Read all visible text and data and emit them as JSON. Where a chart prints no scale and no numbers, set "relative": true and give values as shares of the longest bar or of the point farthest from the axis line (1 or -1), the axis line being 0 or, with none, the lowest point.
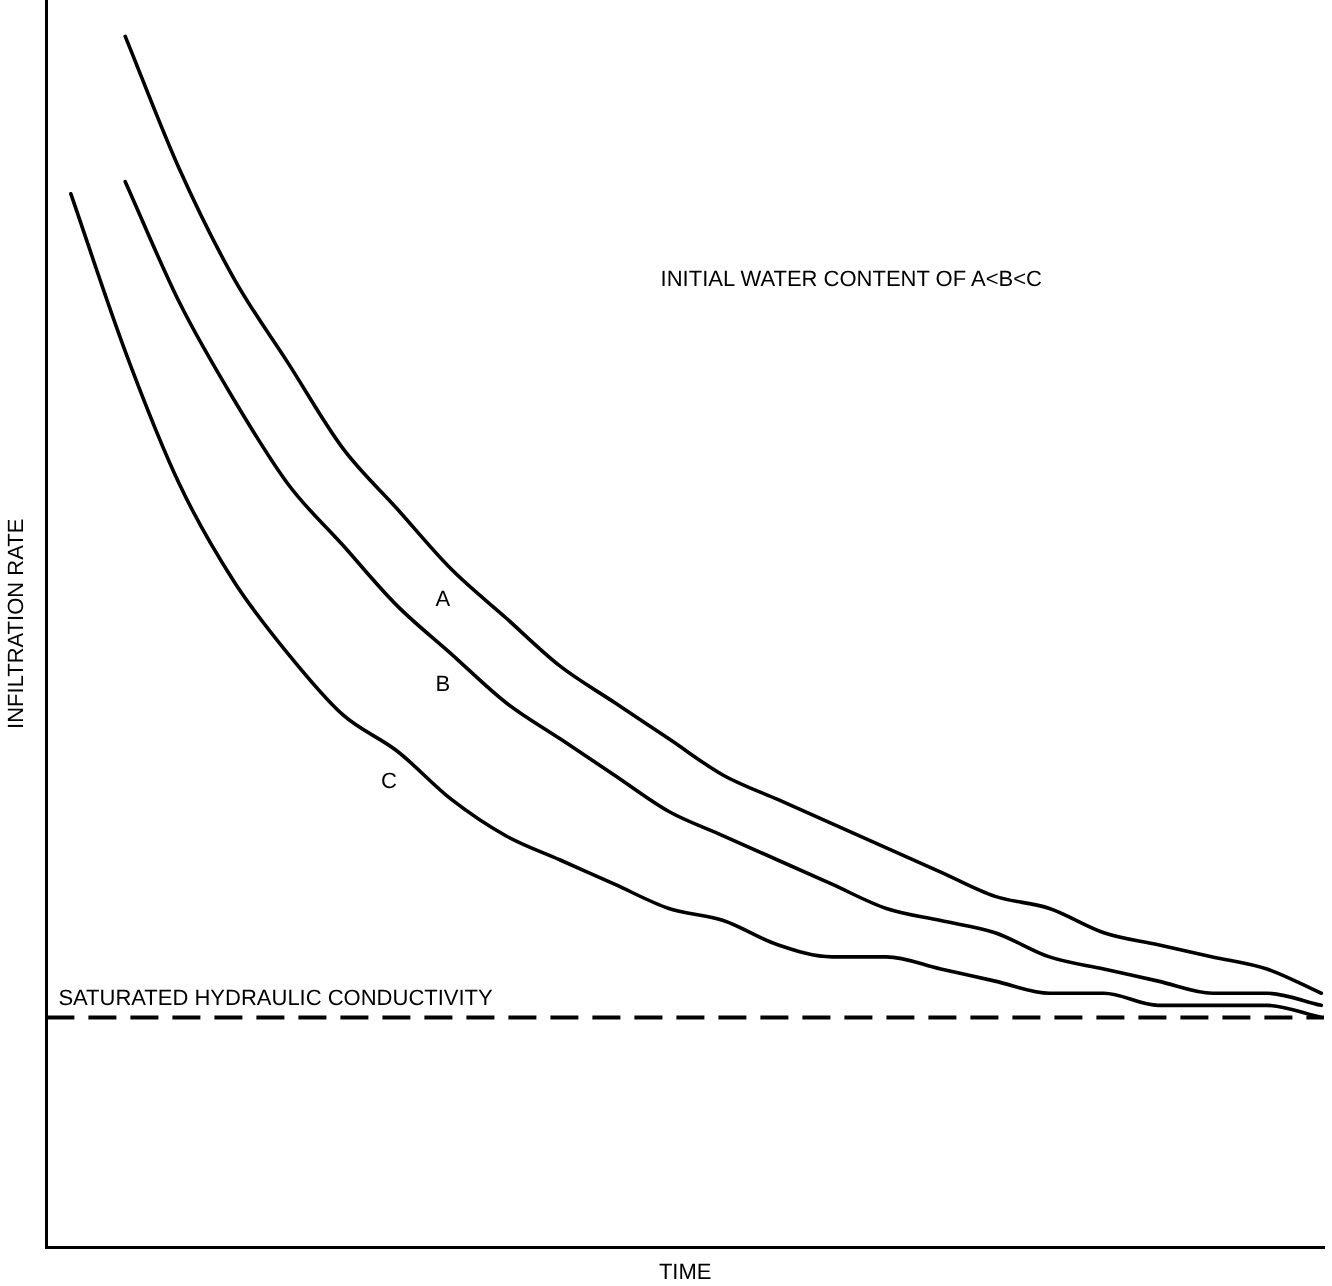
{
  "chart_data": {
    "type": "line",
    "relative": true,
    "xlabel": "TIME",
    "ylabel": "INFILTRATION RATE",
    "legend": false,
    "grid": false,
    "marker": "none",
    "line_style": "solid",
    "categories": [
      null,
      null,
      null,
      null,
      null,
      null,
      null,
      null,
      null,
      null,
      null,
      null,
      null,
      null,
      null,
      null,
      null,
      null,
      null,
      null,
      null,
      null,
      null,
      null
    ],
    "series": [
      {
        "name": "A",
        "color": "#000000",
        "values": [
          null,
          1,
          0.89,
          0.8,
          0.73,
          0.66,
          0.61,
          0.56,
          0.52,
          0.48,
          0.45,
          0.42,
          0.39,
          0.37,
          0.35,
          0.33,
          0.31,
          0.29,
          0.28,
          0.26,
          0.25,
          0.24,
          0.23,
          0.21
        ]
      },
      {
        "name": "B",
        "color": "#000000",
        "values": [
          null,
          0.88,
          0.78,
          0.7,
          0.63,
          0.58,
          0.53,
          0.49,
          0.45,
          0.42,
          0.39,
          0.36,
          0.34,
          0.32,
          0.3,
          0.28,
          0.27,
          0.26,
          0.24,
          0.23,
          0.22,
          0.21,
          0.21,
          0.2
        ]
      },
      {
        "name": "C",
        "color": "#000000",
        "values": [
          0.87,
          0.74,
          0.63,
          0.55,
          0.49,
          0.44,
          0.41,
          0.37,
          0.34,
          0.32,
          0.3,
          0.28,
          0.27,
          0.25,
          0.24,
          0.24,
          0.23,
          0.22,
          0.21,
          0.21,
          0.2,
          0.2,
          0.2,
          0.19
        ]
      }
    ],
    "ref_lines": [
      {
        "axis": "y",
        "value": 0.19,
        "label": "SATURATED HYDRAULIC CONDUCTIVITY",
        "color": "#000000",
        "line_style": "dashed"
      }
    ],
    "annotations": [
      "INITIAL WATER CONTENT OF A<B<C"
    ]
  }
}
